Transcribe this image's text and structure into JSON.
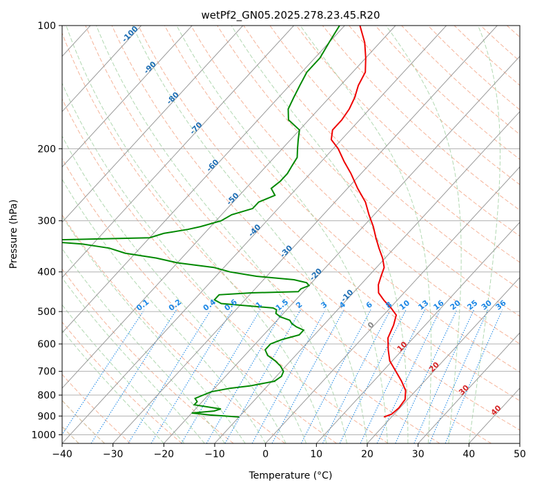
{
  "chart_data": {
    "type": "line",
    "title": "wetPf2_GN05.2025.278.23.45.R20",
    "xlabel": "Temperature (°C)",
    "ylabel": "Pressure (hPa)",
    "xlim": [
      -40,
      50
    ],
    "ylim": [
      1050,
      100
    ],
    "y_scale": "log",
    "grid": true,
    "x_ticks": [
      "−40",
      "−30",
      "−20",
      "−10",
      "0",
      "10",
      "20",
      "30",
      "40",
      "50"
    ],
    "y_ticks": [
      "100",
      "200",
      "300",
      "400",
      "500",
      "600",
      "700",
      "800",
      "900",
      "1000"
    ],
    "colors": {
      "temperature": "#ee0000",
      "dewpoint": "#008800",
      "isotherm": "#999999",
      "dry_adiabat": "#f2a080",
      "moist_adiabat": "#90c890",
      "mixing_ratio": "#1e88e5",
      "isotherm_label": "#1f6fb5",
      "theta_label": "#d62728"
    },
    "series": [
      {
        "key": "temperature",
        "p": [
          905,
          890,
          860,
          820,
          780,
          740,
          700,
          660,
          620,
          580,
          540,
          510,
          490,
          470,
          450,
          430,
          410,
          390,
          370,
          350,
          330,
          310,
          290,
          270,
          250,
          230,
          215,
          200,
          190,
          180,
          170,
          160,
          150,
          140,
          130,
          120,
          110,
          100
        ],
        "t": [
          18.5,
          19.5,
          19.8,
          19.5,
          18,
          15.5,
          12.6,
          9.5,
          7.2,
          5,
          3.8,
          2.5,
          0.2,
          -2.5,
          -5,
          -6.5,
          -7.5,
          -8.5,
          -10.5,
          -13,
          -15.5,
          -18,
          -21,
          -24,
          -28,
          -32,
          -35.5,
          -39,
          -42,
          -43.5,
          -43.5,
          -44,
          -45,
          -46.5,
          -47.5,
          -50,
          -53,
          -57
        ]
      },
      {
        "key": "dewpoint",
        "p": [
          905,
          895,
          885,
          875,
          865,
          855,
          845,
          830,
          815,
          800,
          785,
          770,
          760,
          740,
          720,
          700,
          680,
          660,
          640,
          620,
          600,
          585,
          570,
          555,
          545,
          535,
          525,
          515,
          505,
          495,
          490,
          478,
          468,
          460,
          455,
          450,
          447,
          440,
          432,
          425,
          418,
          410,
          400,
          390,
          380,
          370,
          360,
          350,
          342,
          335,
          330,
          322,
          315,
          310,
          300,
          290,
          280,
          270,
          260,
          250,
          240,
          230,
          220,
          210,
          200,
          190,
          180,
          170,
          160,
          150,
          140,
          130,
          120,
          110,
          100
        ],
        "td": [
          -10,
          -16,
          -20,
          -16,
          -15,
          -18,
          -21,
          -21,
          -22,
          -21,
          -20,
          -17,
          -13.5,
          -9.5,
          -9,
          -9.5,
          -11,
          -13,
          -15.5,
          -17,
          -17,
          -15.5,
          -13,
          -13,
          -15,
          -16.5,
          -17.5,
          -20,
          -21.5,
          -22,
          -23,
          -34,
          -36,
          -36,
          -36,
          -30,
          -21,
          -21,
          -20,
          -21,
          -24,
          -32,
          -38,
          -42,
          -50,
          -55,
          -62,
          -66,
          -72,
          -82,
          -60,
          -58,
          -54,
          -52,
          -49,
          -48,
          -45,
          -45,
          -43,
          -45,
          -44.5,
          -44.5,
          -45,
          -45.5,
          -47,
          -48.5,
          -50,
          -54,
          -56,
          -57,
          -58,
          -59,
          -59,
          -60,
          -61
        ]
      }
    ],
    "isotherm_labels": [
      "-100",
      "-90",
      "-80",
      "-70",
      "-60",
      "-50",
      "-40",
      "-30",
      "-20",
      "-10",
      "0",
      "10",
      "20",
      "30",
      "40"
    ],
    "mixing_ratio_labels": [
      "0.1",
      "0.2",
      "0.4",
      "0.6",
      "1",
      "1.5",
      "2",
      "3",
      "4",
      "6",
      "8",
      "10",
      "13",
      "16",
      "20",
      "25",
      "30",
      "36"
    ],
    "mixing_ratio_values": [
      0.1,
      0.2,
      0.4,
      0.6,
      1,
      1.5,
      2,
      3,
      4,
      6,
      8,
      10,
      13,
      16,
      20,
      25,
      30,
      36
    ]
  }
}
